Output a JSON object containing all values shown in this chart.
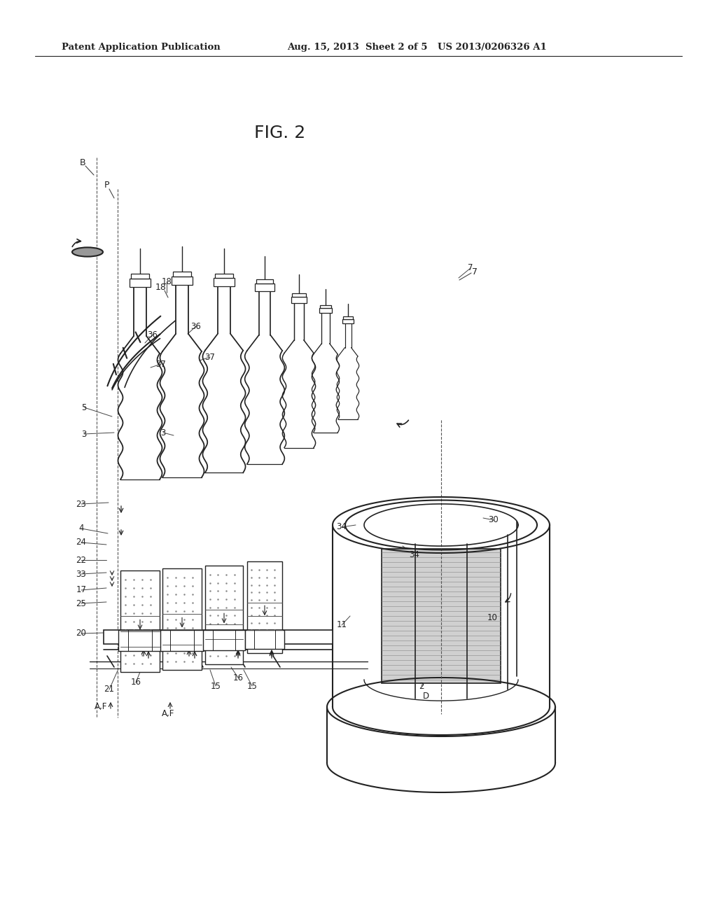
{
  "bg_color": "#ffffff",
  "line_color": "#222222",
  "header_left": "Patent Application Publication",
  "header_mid": "Aug. 15, 2013  Sheet 2 of 5",
  "header_right": "US 2013/0206326 A1",
  "fig_label": "FIG. 2",
  "dot_color": "#aaaaaa",
  "gray_fill": "#d8d8d8",
  "gray_panel": "#cccccc"
}
